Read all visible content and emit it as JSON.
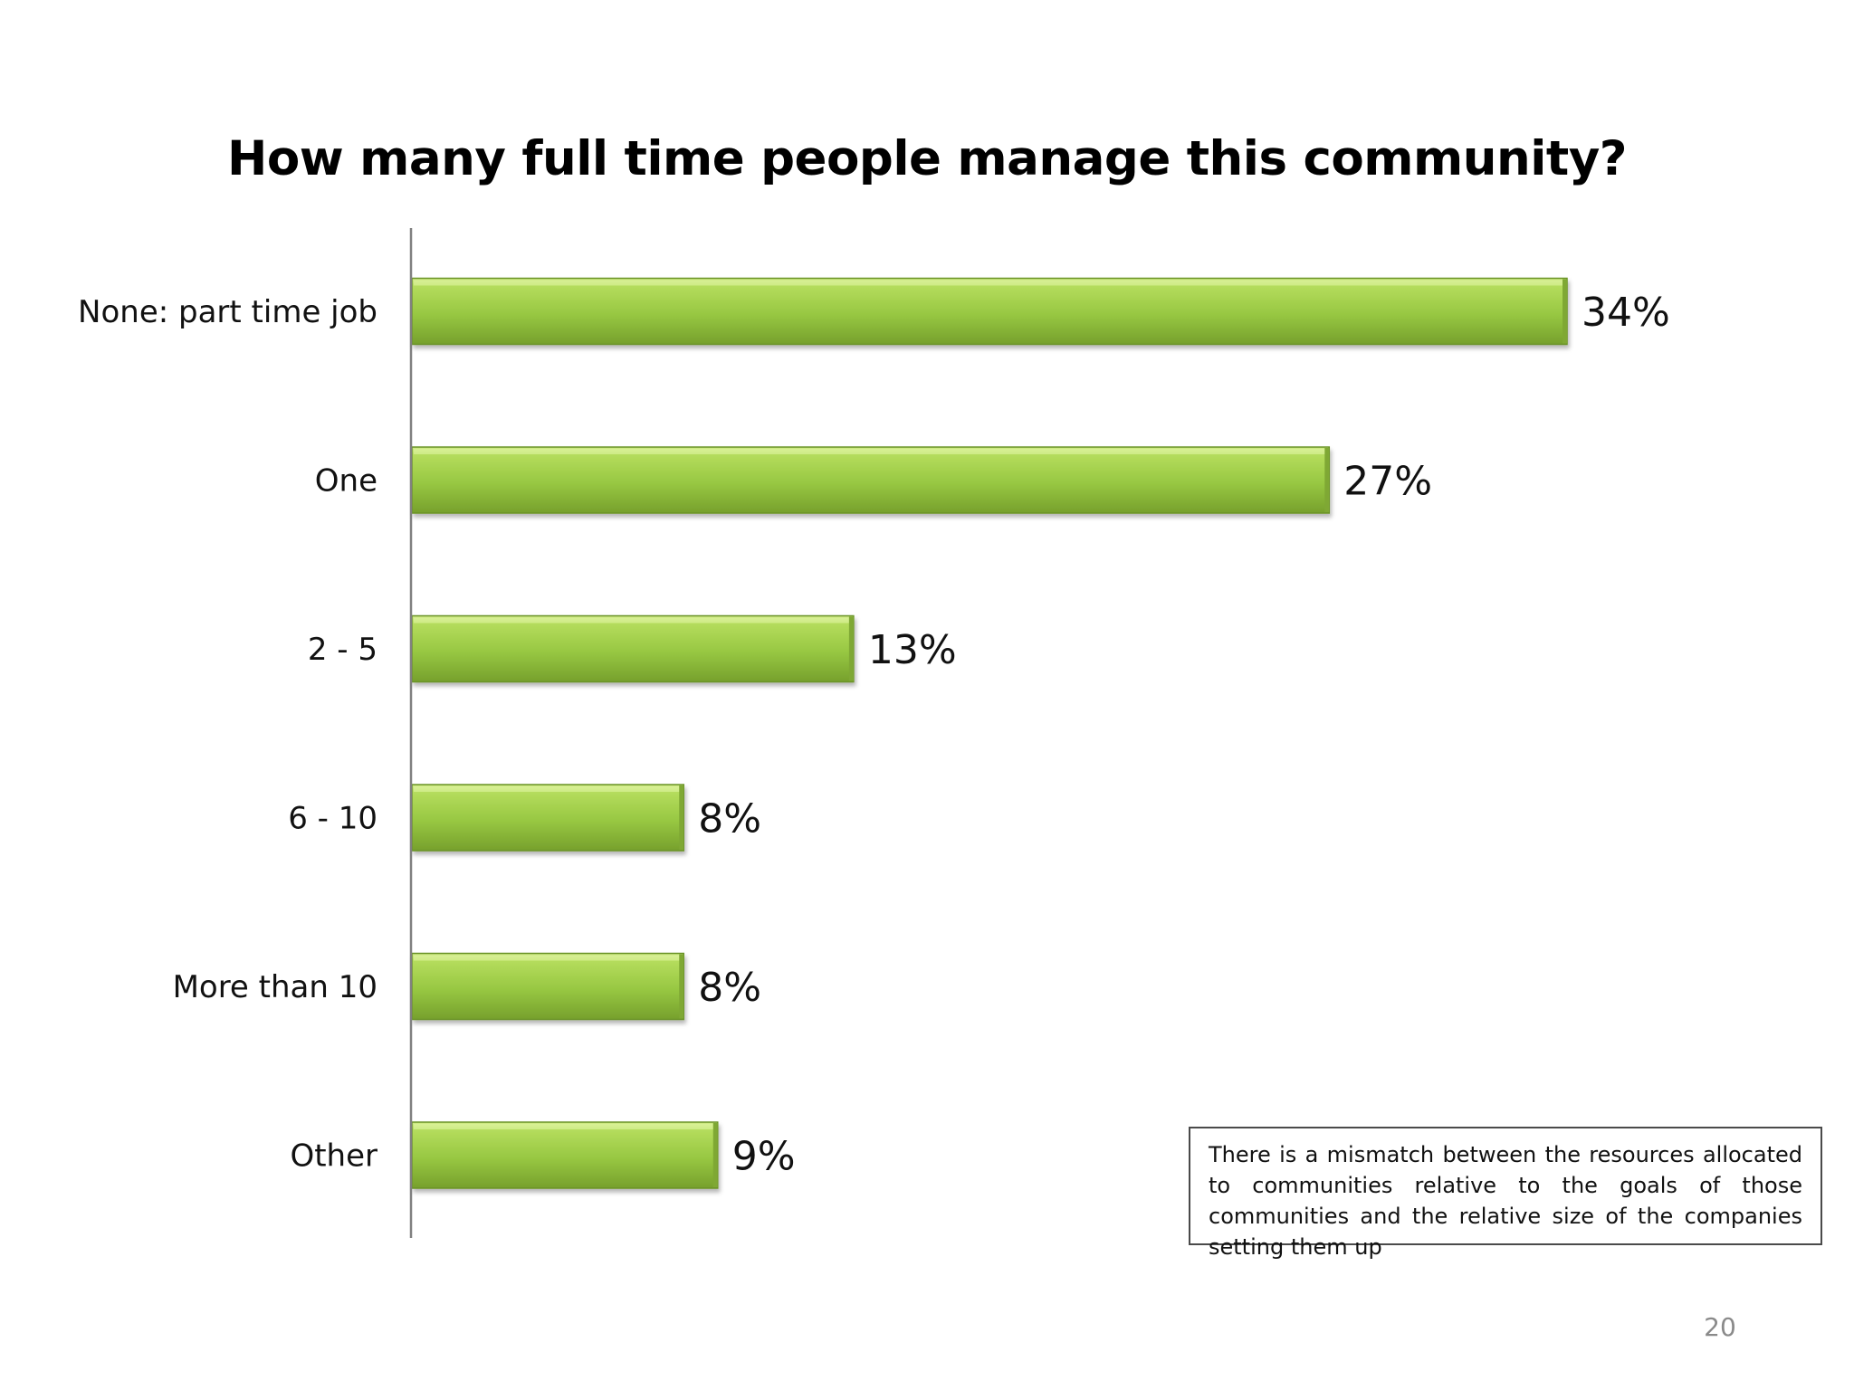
{
  "slide": {
    "note": "There is a mismatch between the resources allocated to communities relative to the goals of those communities and the relative size of the companies setting them up",
    "page_number": "20"
  },
  "colors": {
    "bar_light": "#c8e67a",
    "bar_mid": "#9ccc45",
    "bar_dark": "#6f9a28",
    "axis": "#808080"
  },
  "chart_data": {
    "type": "bar",
    "orientation": "horizontal",
    "title": "How many full time people manage this community?",
    "categories": [
      "None: part time job",
      "One",
      "2 - 5",
      "6 - 10",
      "More than 10",
      "Other"
    ],
    "values": [
      34,
      27,
      13,
      8,
      8,
      9
    ],
    "value_labels": [
      "34%",
      "27%",
      "13%",
      "8%",
      "8%",
      "9%"
    ],
    "unit": "%",
    "xlim": [
      0,
      34
    ],
    "grid": false,
    "legend": "none"
  }
}
